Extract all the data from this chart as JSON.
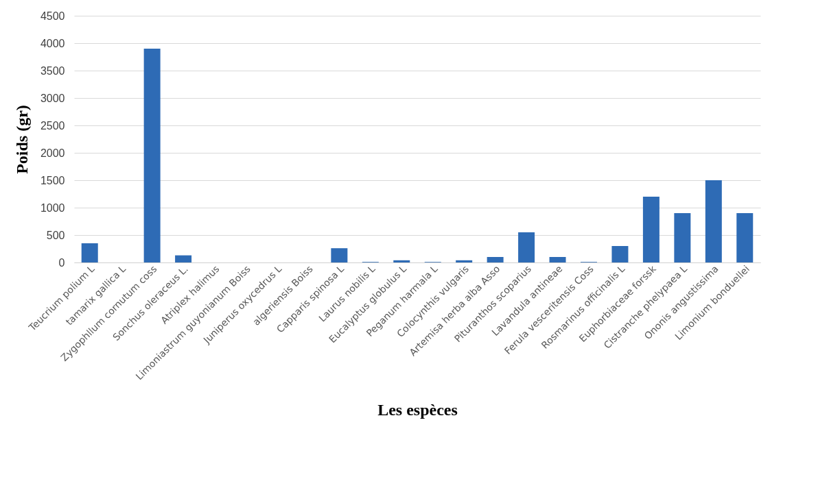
{
  "chart_data": {
    "type": "bar",
    "xlabel": "Les espèces",
    "ylabel": "Poids (gr)",
    "categories": [
      "Teucrium polium L",
      "tamarix gallica L",
      "Zygophllum cornutum coss",
      "Sonchus oleraceus L.",
      "Atriplex halimus",
      "Limoniastrum guyonianum Boiss",
      "Juniperus oxycedrus L",
      "algeriensis Boiss",
      "Capparis spinosa L",
      "Laurus nobilis L",
      "Eucalyptus globulus L",
      "Peganum harmala L",
      "Colocynthis vulgaris",
      "Artemisa herba alba Asso",
      "Pituranthos scoparius",
      "Lavandula antineae",
      "Ferula vesceritensis Coss",
      "Rosmarinus officinalis L",
      "Euphorbiaceae forssk",
      "Cistranche phelypaea L",
      "Ononis angustissima",
      "Limonium bonduellei"
    ],
    "values": [
      350,
      0,
      3900,
      130,
      0,
      0,
      0,
      0,
      260,
      10,
      40,
      10,
      40,
      100,
      550,
      100,
      10,
      300,
      1200,
      900,
      1500,
      900
    ],
    "color": "#2e6bb5",
    "ylim": [
      0,
      4500
    ],
    "yticks": [
      0,
      500,
      1000,
      1500,
      2000,
      2500,
      3000,
      3500,
      4000,
      4500
    ],
    "grid": "y"
  }
}
